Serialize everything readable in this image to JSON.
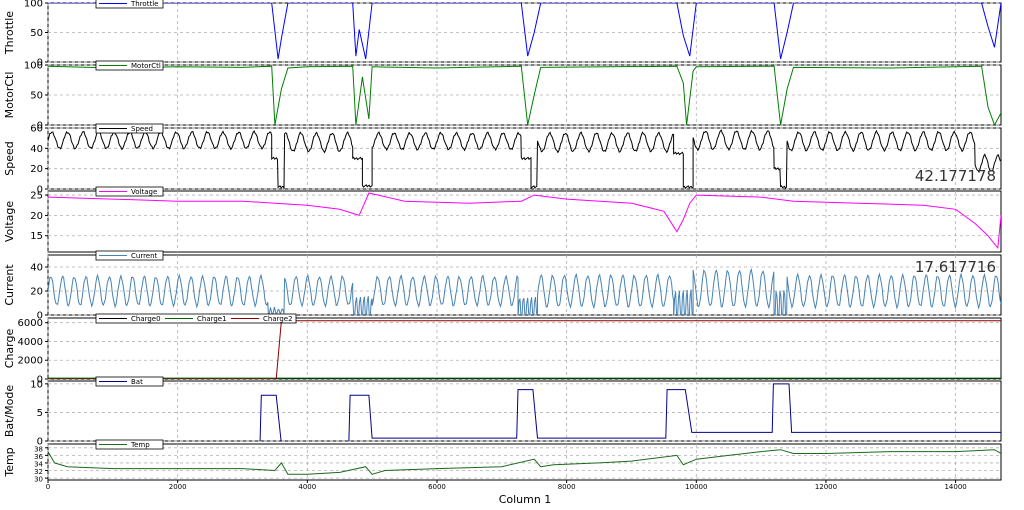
{
  "chart_data": [
    {
      "type": "line",
      "ylabel": "Throttle",
      "yticks": [
        "0",
        "50",
        "100"
      ],
      "ylim": [
        0,
        100
      ],
      "legend": {
        "entries": [
          "Throttle"
        ],
        "placement": "top-left"
      },
      "series": [
        {
          "name": "Throttle",
          "color": "#0000ff",
          "x": [
            0,
            3450,
            3550,
            3600,
            3700,
            4700,
            4750,
            4800,
            4900,
            5000,
            7300,
            7400,
            7500,
            7600,
            9700,
            9800,
            9900,
            10000,
            11200,
            11300,
            11400,
            11500,
            14400,
            14500,
            14600,
            14700
          ],
          "values": [
            100,
            100,
            5,
            40,
            100,
            100,
            10,
            55,
            5,
            100,
            100,
            10,
            50,
            100,
            100,
            45,
            10,
            100,
            100,
            5,
            50,
            100,
            100,
            60,
            25,
            100
          ]
        }
      ]
    },
    {
      "type": "line",
      "ylabel": "MotorCtl",
      "yticks": [
        "0",
        "50",
        "100"
      ],
      "ylim": [
        0,
        100
      ],
      "legend": {
        "entries": [
          "MotorCtl"
        ],
        "placement": "top-left"
      },
      "series": [
        {
          "name": "MotorCtl",
          "color": "#008000",
          "x": [
            0,
            1000,
            2000,
            3000,
            3450,
            3500,
            3600,
            3700,
            4000,
            4700,
            4750,
            4850,
            4950,
            5000,
            6000,
            7300,
            7400,
            7500,
            7600,
            9700,
            9800,
            9850,
            9950,
            10000,
            11200,
            11300,
            11400,
            11500,
            13000,
            14400,
            14500,
            14600,
            14700
          ],
          "values": [
            98,
            95,
            97,
            96,
            98,
            0,
            60,
            95,
            97,
            98,
            0,
            80,
            10,
            97,
            95,
            98,
            0,
            50,
            96,
            98,
            70,
            0,
            90,
            97,
            98,
            0,
            60,
            96,
            95,
            98,
            30,
            0,
            20
          ]
        }
      ]
    },
    {
      "type": "line",
      "ylabel": "Speed",
      "yticks": [
        "0",
        "20",
        "40",
        "60"
      ],
      "ylim": [
        0,
        60
      ],
      "legend": {
        "entries": [
          "Speed"
        ],
        "placement": "top-left"
      },
      "annotation": "42.177178",
      "series": [
        {
          "name": "Speed",
          "color": "#000000",
          "segments": [
            {
              "start": 0,
              "end": 3450,
              "base": 48,
              "amp": 8,
              "period": 240
            },
            {
              "start": 3450,
              "end": 3550,
              "base": 30,
              "amp": 0,
              "period": 240
            },
            {
              "start": 3550,
              "end": 3650,
              "base": 2,
              "amp": 0,
              "period": 240
            },
            {
              "start": 3650,
              "end": 4700,
              "base": 46,
              "amp": 9,
              "period": 240
            },
            {
              "start": 4700,
              "end": 4850,
              "base": 30,
              "amp": 0,
              "period": 240
            },
            {
              "start": 4850,
              "end": 5000,
              "base": 3,
              "amp": 0,
              "period": 240
            },
            {
              "start": 5000,
              "end": 7300,
              "base": 47,
              "amp": 8,
              "period": 240
            },
            {
              "start": 7300,
              "end": 7450,
              "base": 30,
              "amp": 0,
              "period": 240
            },
            {
              "start": 7450,
              "end": 7550,
              "base": 2,
              "amp": 0,
              "period": 240
            },
            {
              "start": 7550,
              "end": 9650,
              "base": 46,
              "amp": 9,
              "period": 240
            },
            {
              "start": 9650,
              "end": 9800,
              "base": 35,
              "amp": 0,
              "period": 240
            },
            {
              "start": 9800,
              "end": 9950,
              "base": 2,
              "amp": 0,
              "period": 240
            },
            {
              "start": 9950,
              "end": 11200,
              "base": 48,
              "amp": 9,
              "period": 240
            },
            {
              "start": 11200,
              "end": 11300,
              "base": 20,
              "amp": 0,
              "period": 240
            },
            {
              "start": 11300,
              "end": 11400,
              "base": 2,
              "amp": 0,
              "period": 240
            },
            {
              "start": 11400,
              "end": 14300,
              "base": 47,
              "amp": 9,
              "period": 240
            },
            {
              "start": 14300,
              "end": 14700,
              "base": 25,
              "amp": 8,
              "period": 200
            }
          ]
        }
      ]
    },
    {
      "type": "line",
      "ylabel": "Voltage",
      "yticks": [
        "15",
        "20",
        "25"
      ],
      "ylim": [
        11,
        26
      ],
      "legend": {
        "entries": [
          "Voltage"
        ],
        "placement": "top-left"
      },
      "series": [
        {
          "name": "Voltage",
          "color": "#ff00ff",
          "x": [
            0,
            1000,
            2000,
            3000,
            3500,
            4000,
            4500,
            4800,
            4950,
            5500,
            6500,
            7300,
            7500,
            8000,
            9000,
            9500,
            9700,
            9800,
            9900,
            10000,
            11000,
            11500,
            12500,
            13500,
            14000,
            14300,
            14500,
            14600,
            14650,
            14700
          ],
          "values": [
            24.5,
            24,
            23.5,
            23.5,
            23,
            22.5,
            21.5,
            20,
            25.5,
            23.5,
            23,
            23.5,
            25,
            24,
            23,
            21,
            16,
            19,
            23,
            25,
            24.5,
            23.5,
            23,
            22.5,
            21.5,
            18,
            15,
            13,
            12,
            20
          ]
        }
      ]
    },
    {
      "type": "line",
      "ylabel": "Current",
      "yticks": [
        "0",
        "20",
        "40"
      ],
      "ylim": [
        0,
        50
      ],
      "legend": {
        "entries": [
          "Current"
        ],
        "placement": "top-left"
      },
      "annotation": "17.617716",
      "series": [
        {
          "name": "Current",
          "color": "#4682b4",
          "segments": [
            {
              "start": 0,
              "end": 3400,
              "base": 20,
              "amp": 12,
              "period": 180
            },
            {
              "start": 3400,
              "end": 3650,
              "base": 3,
              "amp": 3,
              "period": 60
            },
            {
              "start": 3650,
              "end": 4700,
              "base": 20,
              "amp": 12,
              "period": 180
            },
            {
              "start": 4700,
              "end": 5000,
              "base": 6,
              "amp": 10,
              "period": 60
            },
            {
              "start": 5000,
              "end": 7250,
              "base": 20,
              "amp": 12,
              "period": 180
            },
            {
              "start": 7250,
              "end": 7550,
              "base": 6,
              "amp": 10,
              "period": 60
            },
            {
              "start": 7550,
              "end": 9650,
              "base": 20,
              "amp": 13,
              "period": 180
            },
            {
              "start": 9650,
              "end": 9950,
              "base": 8,
              "amp": 14,
              "period": 60
            },
            {
              "start": 9950,
              "end": 11200,
              "base": 22,
              "amp": 15,
              "period": 180
            },
            {
              "start": 11200,
              "end": 11400,
              "base": 8,
              "amp": 14,
              "period": 60
            },
            {
              "start": 11400,
              "end": 14700,
              "base": 20,
              "amp": 13,
              "period": 180
            }
          ]
        }
      ]
    },
    {
      "type": "line",
      "ylabel": "Charge",
      "yticks": [
        "0",
        "2000",
        "4000",
        "6000"
      ],
      "ylim": [
        0,
        6500
      ],
      "legend": {
        "entries": [
          "Charge0",
          "Charge1",
          "Charge2"
        ],
        "placement": "top"
      },
      "series": [
        {
          "name": "Charge0",
          "color": "#000000",
          "x": [
            0,
            14700
          ],
          "values": [
            50,
            50
          ]
        },
        {
          "name": "Charge1",
          "color": "#006400",
          "x": [
            0,
            14700
          ],
          "values": [
            100,
            100
          ]
        },
        {
          "name": "Charge2",
          "color": "#8b0000",
          "x": [
            0,
            3520,
            3600,
            14700
          ],
          "values": [
            0,
            0,
            6200,
            6200
          ]
        }
      ]
    },
    {
      "type": "line",
      "ylabel": "Bat/Mode",
      "yticks": [
        "0",
        "5",
        "10"
      ],
      "ylim": [
        0,
        10.5
      ],
      "legend": {
        "entries": [
          "Bat"
        ],
        "placement": "top-left"
      },
      "series": [
        {
          "name": "Bat",
          "color": "#00008b",
          "x": [
            0,
            3270,
            3290,
            3520,
            3600,
            4640,
            4660,
            4950,
            5000,
            7230,
            7250,
            7480,
            7550,
            9530,
            9550,
            9830,
            9930,
            11170,
            11190,
            11430,
            11470,
            14700
          ],
          "values": [
            -0.5,
            -0.5,
            8,
            8,
            -0.5,
            -0.5,
            8,
            8,
            0.5,
            0.5,
            9,
            9,
            0.5,
            0.5,
            9,
            9,
            1.5,
            1.5,
            10,
            10,
            1.5,
            1.5
          ]
        }
      ]
    },
    {
      "type": "line",
      "ylabel": "Temp",
      "yticks": [
        "30",
        "32",
        "34",
        "36",
        "38"
      ],
      "ylim": [
        29.5,
        39
      ],
      "legend": {
        "entries": [
          "Temp"
        ],
        "placement": "top-left"
      },
      "series": [
        {
          "name": "Temp",
          "color": "#1a6b1a",
          "x": [
            0,
            100,
            300,
            1000,
            2000,
            3000,
            3500,
            3600,
            3700,
            4000,
            4500,
            4900,
            5000,
            5200,
            6000,
            7000,
            7500,
            7600,
            7800,
            8500,
            9000,
            9700,
            9800,
            10000,
            10500,
            11000,
            11300,
            11500,
            12000,
            13000,
            14000,
            14600,
            14700
          ],
          "values": [
            37,
            34,
            33,
            32.5,
            32.5,
            32.5,
            32,
            34,
            31,
            31,
            31.5,
            33,
            31,
            32,
            32.5,
            33,
            35,
            33,
            33.5,
            34,
            34.5,
            36,
            33.5,
            35,
            36,
            37,
            37.5,
            36.5,
            36.5,
            37,
            37,
            37.5,
            36.5
          ]
        }
      ]
    }
  ],
  "x_axis": {
    "label": "Column 1",
    "ticks": [
      "0",
      "2000",
      "4000",
      "6000",
      "8000",
      "10000",
      "12000",
      "14000"
    ],
    "xlim": [
      0,
      14700
    ],
    "grid": true
  }
}
